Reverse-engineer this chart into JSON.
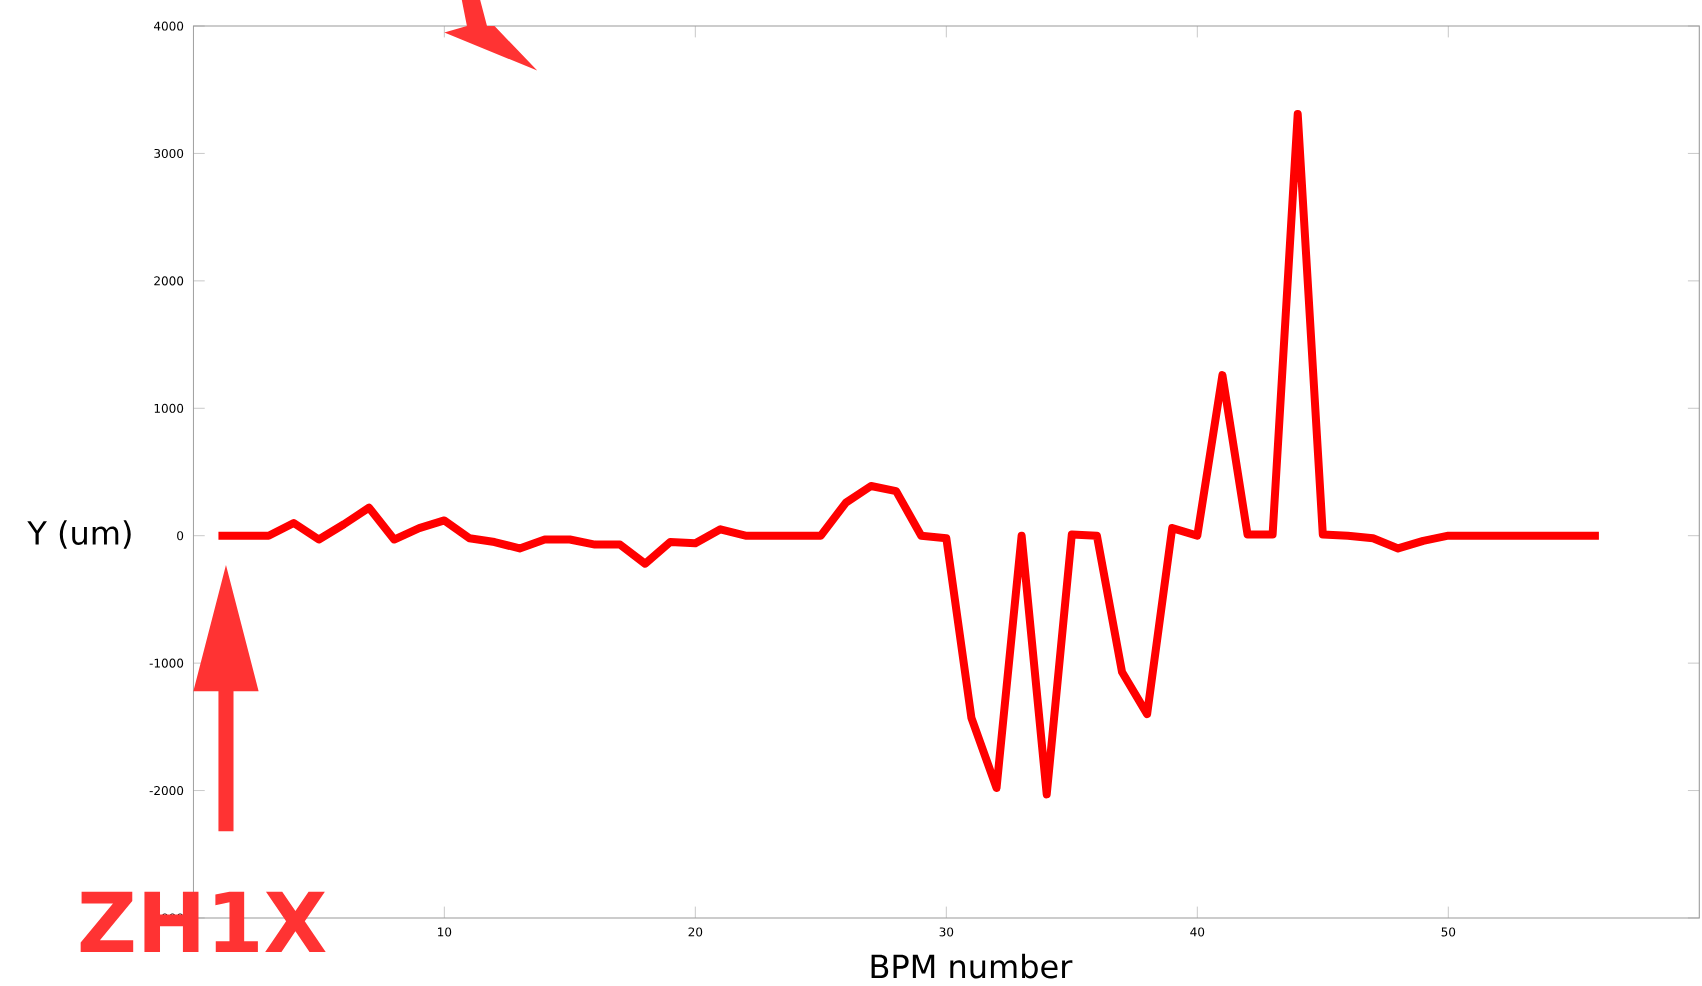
{
  "chart_data": {
    "type": "line",
    "xlabel": "BPM number",
    "ylabel": "Y (um)",
    "x": [
      1,
      2,
      3,
      4,
      5,
      6,
      7,
      8,
      9,
      10,
      11,
      12,
      13,
      14,
      15,
      16,
      17,
      18,
      19,
      20,
      21,
      22,
      23,
      24,
      25,
      26,
      27,
      28,
      29,
      30,
      31,
      32,
      33,
      34,
      35,
      36,
      37,
      38,
      39,
      40,
      41,
      42,
      43,
      44,
      45,
      46,
      47,
      48,
      49,
      50,
      51,
      52,
      53,
      54,
      55,
      56
    ],
    "series": [
      {
        "color": "#ff0000",
        "values": [
          0,
          0,
          0,
          100,
          -30,
          90,
          220,
          -30,
          60,
          120,
          -20,
          -50,
          -100,
          -30,
          -30,
          -70,
          -70,
          -220,
          -50,
          -60,
          50,
          0,
          0,
          0,
          0,
          260,
          390,
          350,
          0,
          -20,
          -1430,
          -1980,
          0,
          -2030,
          10,
          0,
          -1070,
          -1400,
          60,
          0,
          1260,
          10,
          10,
          3310,
          10,
          0,
          -20,
          -100,
          -40,
          0,
          0,
          0,
          0,
          0,
          0,
          0
        ]
      }
    ],
    "xlim": [
      0,
      60
    ],
    "ylim": [
      -3000,
      4000
    ],
    "xticks": [
      10,
      20,
      30,
      40,
      50
    ],
    "yticks": [
      -3000,
      -2000,
      -1000,
      0,
      1000,
      2000,
      3000,
      4000
    ],
    "line_style": "solid",
    "annotations": [
      "ZH1X"
    ]
  }
}
